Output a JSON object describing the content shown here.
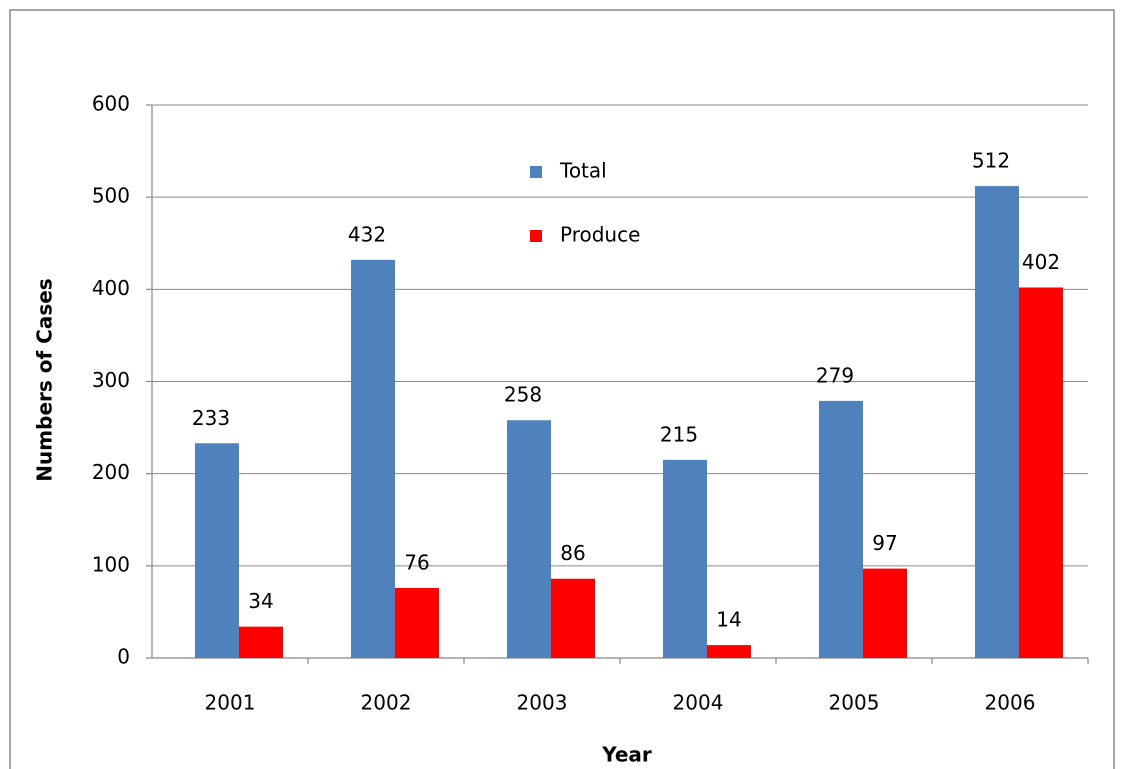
{
  "chart_data": {
    "type": "bar",
    "x_label": "Year",
    "y_label": "Numbers of Cases",
    "categories": [
      "2001",
      "2002",
      "2003",
      "2004",
      "2005",
      "2006"
    ],
    "series": [
      {
        "name": "Total",
        "color": "#4f81bd",
        "values": [
          233,
          432,
          258,
          215,
          279,
          512
        ]
      },
      {
        "name": "Produce",
        "color": "#ff0000",
        "values": [
          34,
          76,
          86,
          14,
          97,
          402
        ]
      }
    ],
    "ylim": [
      0,
      600
    ],
    "yticks": [
      0,
      100,
      200,
      300,
      400,
      500,
      600
    ],
    "grid": true
  }
}
